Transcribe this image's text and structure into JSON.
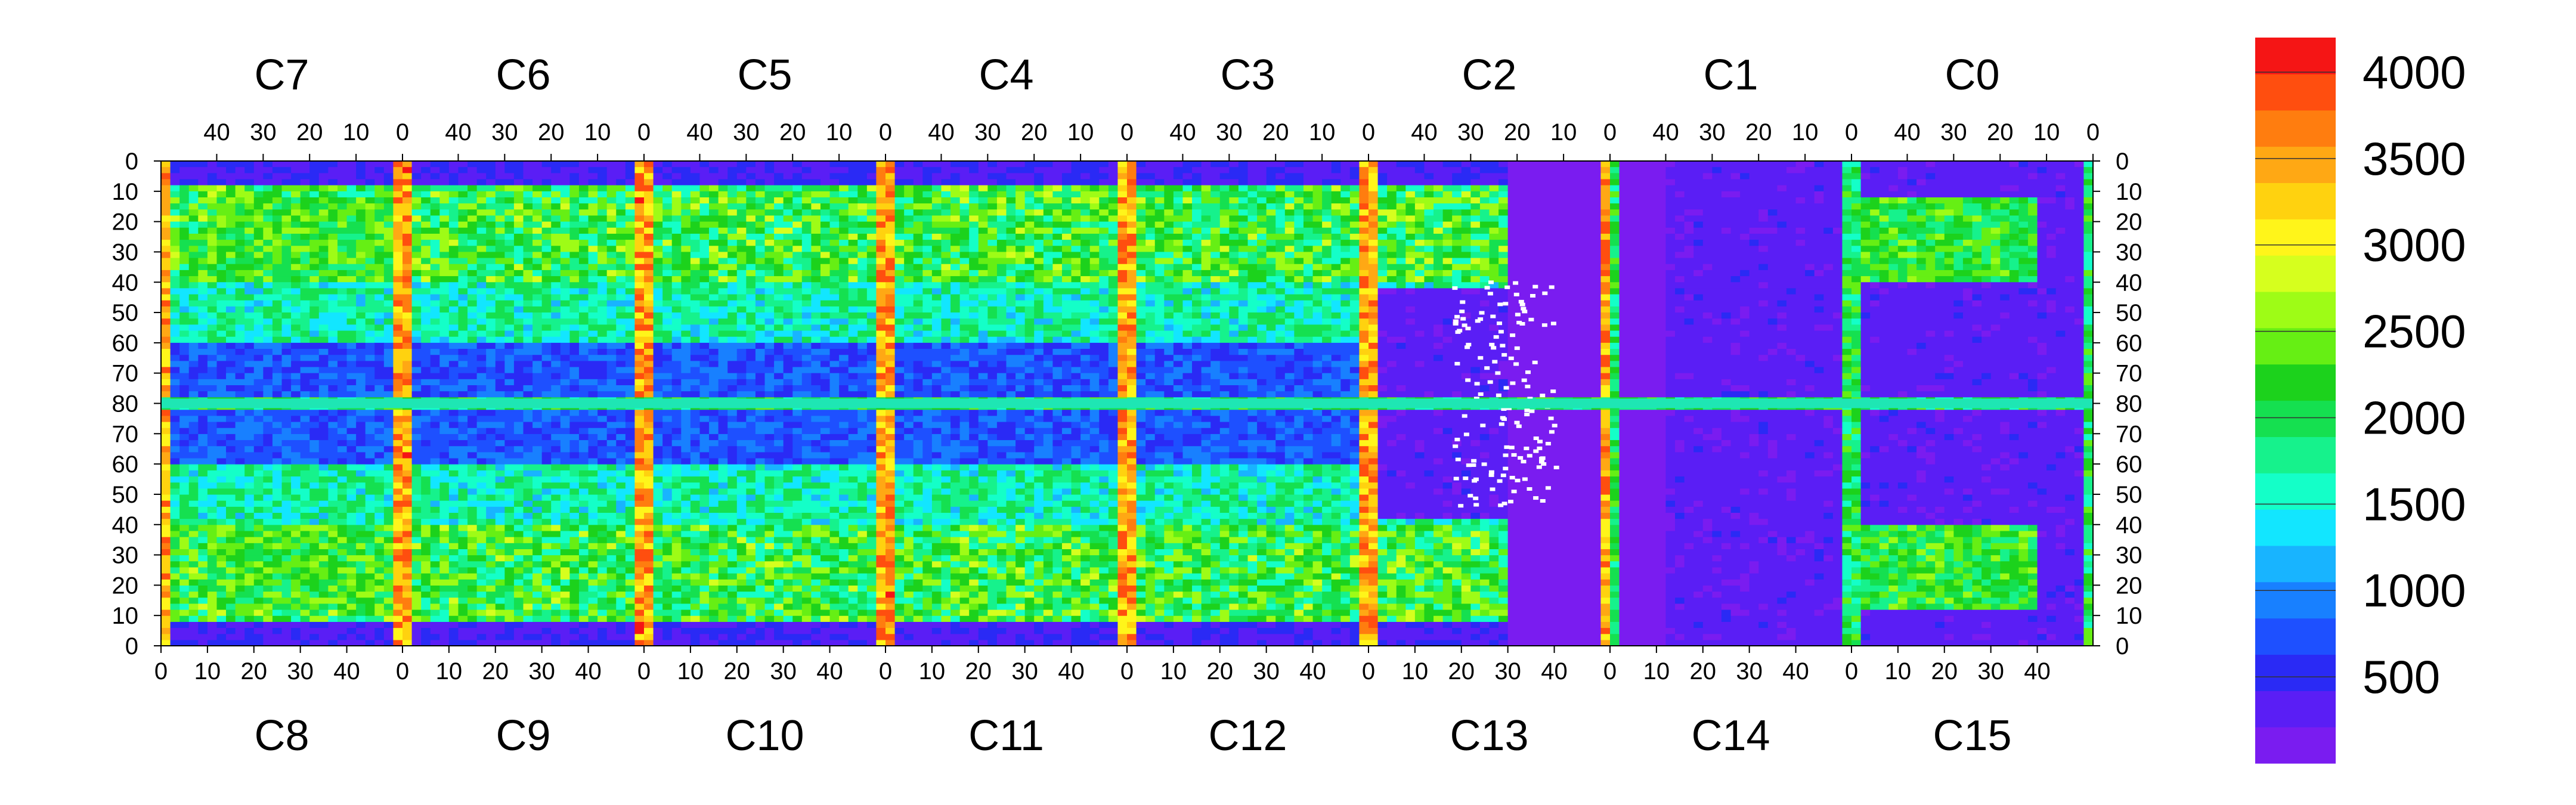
{
  "chart_data": {
    "type": "heatmap",
    "title": "",
    "xlabel": "",
    "ylabel": "",
    "grid": false,
    "top_chip_labels": [
      "C7",
      "C6",
      "C5",
      "C4",
      "C3",
      "C2",
      "C1",
      "C0"
    ],
    "bottom_chip_labels": [
      "C8",
      "C9",
      "C10",
      "C11",
      "C12",
      "C13",
      "C14",
      "C15"
    ],
    "top_x_ticks": [
      "40",
      "30",
      "20",
      "10",
      "0"
    ],
    "bottom_x_ticks": [
      "0",
      "10",
      "20",
      "30",
      "40"
    ],
    "y_ticks_upper": [
      "0",
      "10",
      "20",
      "30",
      "40",
      "50",
      "60",
      "70",
      "80"
    ],
    "y_ticks_lower": [
      "70",
      "60",
      "50",
      "40",
      "30",
      "20",
      "10",
      "0"
    ],
    "columns_per_chip": 52,
    "rows_per_half": 80,
    "colorbar": {
      "min": 0,
      "max": 4200,
      "labels": [
        "500",
        "1000",
        "1500",
        "2000",
        "2500",
        "3000",
        "3500",
        "4000"
      ],
      "palette": [
        "#7a1cf0",
        "#5a1ef5",
        "#2a2af5",
        "#1e50ff",
        "#1880ff",
        "#18b4ff",
        "#12e6ff",
        "#14ffc8",
        "#16f28c",
        "#15e050",
        "#1cd21c",
        "#66ef14",
        "#9efc16",
        "#d6ff1e",
        "#fff51a",
        "#ffd20f",
        "#ffa814",
        "#ff7d0f",
        "#ff4e0f",
        "#f51515"
      ]
    }
  }
}
